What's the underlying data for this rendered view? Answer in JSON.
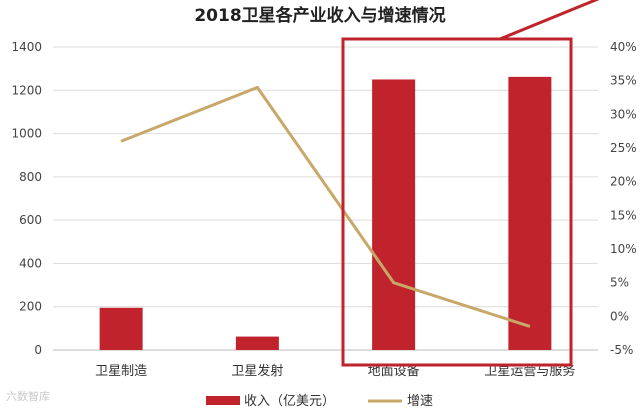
{
  "chart_data": {
    "type": "bar",
    "title": "2018卫星各产业收入与增速情况",
    "categories": [
      "卫星制造",
      "卫星发射",
      "地面设备",
      "卫星运营与服务"
    ],
    "series": [
      {
        "name": "收入（亿美元）",
        "type": "bar",
        "axis": "left",
        "values": [
          195,
          62,
          1250,
          1262
        ],
        "color": "#c0232b"
      },
      {
        "name": "增速",
        "type": "line",
        "axis": "right",
        "values": [
          26,
          34,
          5,
          -1.5
        ],
        "color": "#c8a869"
      }
    ],
    "y_left": {
      "min": 0,
      "max": 1400,
      "ticks": [
        "0",
        "200",
        "400",
        "600",
        "800",
        "1000",
        "1200",
        "1400"
      ]
    },
    "y_right": {
      "min": -5,
      "max": 40,
      "ticks": [
        "-5%",
        "0%",
        "5%",
        "10%",
        "15%",
        "20%",
        "25%",
        "30%",
        "35%",
        "40%"
      ]
    },
    "grid": true,
    "legend_position": "bottom",
    "highlight": {
      "categories": [
        "地面设备",
        "卫星运营与服务"
      ],
      "color": "#c0232b"
    }
  },
  "watermark": "六数智库"
}
